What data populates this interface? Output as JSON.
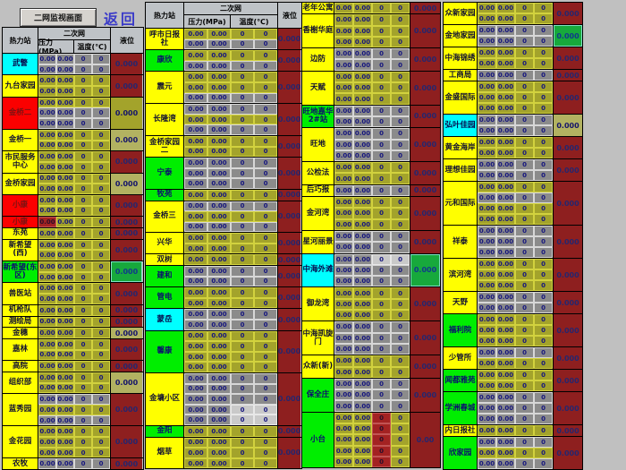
{
  "titlebar": {
    "screen_button_label": "二网监视画面",
    "return_label": "返回"
  },
  "table_headers": {
    "station": "热力站",
    "network": "二次网",
    "pressure": "压力(MPa)",
    "temperature": "温度(℃)",
    "level": "液位"
  },
  "defaults": {
    "pressure_value": "0.00",
    "temperature_value": "0",
    "level_value": "0.000"
  },
  "colors": {
    "background": "#c0c0c0",
    "station_yellow": "#ffff00",
    "station_red": "#fb0000",
    "station_green": "#00ee00",
    "station_cyan": "#00ffff",
    "cell_olive": "#a3a32b",
    "cell_gray": "#8b8b8b",
    "cell_light": "#c9c9c9",
    "cell_alarm_red": "#a32222",
    "level_dark_red": "#8e1f1f",
    "level_olive": "#a3a32b",
    "level_pale": "#b2b261",
    "level_green": "#17a93c",
    "value_text_navy": "#16167e",
    "return_text_blue": "#3a3ac8"
  },
  "groups": [
    {
      "has_header": true,
      "stations": [
        {
          "n": "武警",
          "bg": "cyan",
          "rows": [
            "g",
            "g"
          ],
          "lv": "red"
        },
        {
          "n": "九台家园",
          "bg": "yellow",
          "rows": [
            "o",
            "o"
          ],
          "lv": "red"
        },
        {
          "n": "金桥二",
          "bg": "red",
          "rows": [
            "o",
            "g",
            "g"
          ],
          "lv": "olive"
        },
        {
          "n": "金桥一",
          "bg": "yellow",
          "rows": [
            "o",
            "o"
          ],
          "lv": "pale"
        },
        {
          "n": "市民服务中心",
          "bg": "yellow",
          "rows": [
            "o",
            "o"
          ],
          "lv": "red"
        },
        {
          "n": "金桥家园",
          "bg": "yellow",
          "rows": [
            "o",
            "o"
          ],
          "lv": "pale"
        },
        {
          "n": "小康",
          "bg": "red",
          "rows": [
            "o",
            "o"
          ],
          "lv": "red"
        },
        {
          "n": "小康",
          "bg": "red",
          "rows": [
            "rf"
          ],
          "lv": "red"
        },
        {
          "n": "东苑",
          "bg": "yellow",
          "rows": [
            "o"
          ],
          "lv": "red"
        },
        {
          "n": "新希望(西)",
          "bg": "yellow",
          "rows": [
            "o",
            "o"
          ],
          "lv": "red"
        },
        {
          "n": "新希望(东区)",
          "bg": "green",
          "rows": [
            "o",
            "o"
          ],
          "lv": "green"
        },
        {
          "n": "兽医站",
          "bg": "yellow",
          "rows": [
            "o",
            "o"
          ],
          "lv": "red"
        },
        {
          "n": "机枪队",
          "bg": "yellow",
          "rows": [
            "o"
          ],
          "lv": "red"
        },
        {
          "n": "测绘局",
          "bg": "yellow",
          "rows": [
            "o"
          ],
          "lv": "red"
        },
        {
          "n": "金穗",
          "bg": "yellow",
          "rows": [
            "o"
          ],
          "lv": "pale"
        },
        {
          "n": "嘉林",
          "bg": "yellow",
          "rows": [
            "o",
            "o"
          ],
          "lv": "red"
        },
        {
          "n": "高院",
          "bg": "yellow",
          "rows": [
            "o"
          ],
          "lv": "red"
        },
        {
          "n": "组织部",
          "bg": "yellow",
          "rows": [
            "o",
            "o"
          ],
          "lv": "pale"
        },
        {
          "n": "蓝秀园",
          "bg": "yellow",
          "rows": [
            "g",
            "o",
            "g"
          ],
          "lv": "red"
        },
        {
          "n": "金花园",
          "bg": "yellow",
          "rows": [
            "o",
            "o",
            "o"
          ],
          "lv": "red"
        },
        {
          "n": "农牧",
          "bg": "yellow",
          "rows": [
            "g"
          ],
          "lv": "red"
        }
      ]
    },
    {
      "has_header": true,
      "stations": [
        {
          "n": "呼市日报社",
          "bg": "yellow",
          "rows": [
            "o",
            "g"
          ],
          "lv": "red"
        },
        {
          "n": "康欣",
          "bg": "green",
          "rows": [
            "o",
            "g"
          ],
          "lv": "red"
        },
        {
          "n": "震元",
          "bg": "yellow",
          "rows": [
            "o",
            "o",
            "g"
          ],
          "lv": "red"
        },
        {
          "n": "长隆湾",
          "bg": "yellow",
          "rows": [
            "g",
            "o",
            "g"
          ],
          "lv": "red"
        },
        {
          "n": "金桥家园二",
          "bg": "yellow",
          "rows": [
            "o",
            "o"
          ],
          "lv": "red"
        },
        {
          "n": "宁泰",
          "bg": "green",
          "rows": [
            "g",
            "g",
            "g"
          ],
          "lv": "red"
        },
        {
          "n": "牧苑",
          "bg": "green",
          "rows": [
            "o"
          ],
          "lv": "red"
        },
        {
          "n": "金桥三",
          "bg": "yellow",
          "rows": [
            "g",
            "o",
            "g"
          ],
          "lv": "red"
        },
        {
          "n": "兴华",
          "bg": "yellow",
          "rows": [
            "o",
            "o"
          ],
          "lv": "red"
        },
        {
          "n": "双树",
          "bg": "yellow",
          "rows": [
            "o"
          ],
          "lv": "red"
        },
        {
          "n": "建和",
          "bg": "green",
          "rows": [
            "g",
            "g"
          ],
          "lv": "red"
        },
        {
          "n": "管电",
          "bg": "green",
          "rows": [
            "o",
            "o"
          ],
          "lv": "red"
        },
        {
          "n": "蒙岳",
          "bg": "cyan",
          "rows": [
            "g",
            "g"
          ],
          "lv": "red"
        },
        {
          "n": "馨康",
          "bg": "green",
          "rows": [
            "o",
            "o",
            "o",
            "o"
          ],
          "lv": "red"
        },
        {
          "n": "金墉小区",
          "bg": "yellow",
          "rows": [
            "g",
            "g",
            "g",
            "l",
            "l"
          ],
          "lv": "red"
        },
        {
          "n": "金阳",
          "bg": "green",
          "rows": [
            "o"
          ],
          "lv": "red"
        },
        {
          "n": "烟草",
          "bg": "yellow",
          "rows": [
            "o",
            "o",
            "o"
          ],
          "lv": "red"
        }
      ]
    },
    {
      "has_header": false,
      "stations": [
        {
          "n": "老年公寓",
          "bg": "yellow",
          "rows": [
            "o"
          ],
          "lv": "red"
        },
        {
          "n": "香榭华庭",
          "bg": "yellow",
          "rows": [
            "o",
            "o",
            "o"
          ],
          "lv": "red"
        },
        {
          "n": "边防",
          "bg": "yellow",
          "rows": [
            "g",
            "g"
          ],
          "lv": "red"
        },
        {
          "n": "天赋",
          "bg": "yellow",
          "rows": [
            "o",
            "o",
            "o"
          ],
          "lv": "red"
        },
        {
          "n": "旺地嘉华2#站",
          "bg": "green",
          "rows": [
            "g",
            "g"
          ],
          "lv": "red"
        },
        {
          "n": "旺地",
          "bg": "yellow",
          "rows": [
            "g",
            "g",
            "g"
          ],
          "lv": "red"
        },
        {
          "n": "公检法",
          "bg": "yellow",
          "rows": [
            "o",
            "o"
          ],
          "lv": "red"
        },
        {
          "n": "后巧报",
          "bg": "yellow",
          "rows": [
            "g"
          ],
          "lv": "red"
        },
        {
          "n": "金河湾",
          "bg": "yellow",
          "rows": [
            "o",
            "o",
            "o"
          ],
          "lv": "red"
        },
        {
          "n": "星河丽景",
          "bg": "yellow",
          "rows": [
            "g",
            "g"
          ],
          "lv": "red"
        },
        {
          "n": "中海外滩",
          "bg": "cyan",
          "rows": [
            "l",
            "g",
            "g"
          ],
          "lv": "green"
        },
        {
          "n": "御龙湾",
          "bg": "yellow",
          "rows": [
            "o",
            "o",
            "o"
          ],
          "lv": "red"
        },
        {
          "n": "中海凯旋门",
          "bg": "yellow",
          "rows": [
            "g",
            "g",
            "g"
          ],
          "lv": "red"
        },
        {
          "n": "众新(新)",
          "bg": "yellow",
          "rows": [
            "o",
            "o"
          ],
          "lv": "red"
        },
        {
          "n": "保全庄",
          "bg": "green",
          "rows": [
            "g",
            "g",
            "g"
          ],
          "lv": "red"
        },
        {
          "n": "小台",
          "bg": "green",
          "rows": [
            "tr",
            "tr",
            "tr",
            "tr",
            "tr"
          ],
          "lv": "red",
          "lval": "0.00"
        }
      ]
    },
    {
      "has_header": false,
      "stations": [
        {
          "n": "众新家园",
          "bg": "yellow",
          "rows": [
            "o",
            "o"
          ],
          "lv": "red"
        },
        {
          "n": "金地家园",
          "bg": "yellow",
          "rows": [
            "g",
            "g"
          ],
          "lv": "green"
        },
        {
          "n": "中海锦绣",
          "bg": "yellow",
          "rows": [
            "o",
            "o"
          ],
          "lv": "red"
        },
        {
          "n": "工商局",
          "bg": "yellow",
          "rows": [
            "g"
          ],
          "lv": "red"
        },
        {
          "n": "金盛国际",
          "bg": "yellow",
          "rows": [
            "o",
            "o",
            "o"
          ],
          "lv": "red"
        },
        {
          "n": "弘叶佳园",
          "bg": "cyan",
          "rows": [
            "g",
            "g"
          ],
          "lv": "pale"
        },
        {
          "n": "黄金海岸",
          "bg": "yellow",
          "rows": [
            "o",
            "o"
          ],
          "lv": "red"
        },
        {
          "n": "理想佳园",
          "bg": "yellow",
          "rows": [
            "g",
            "g"
          ],
          "lv": "red"
        },
        {
          "n": "元和国际",
          "bg": "yellow",
          "rows": [
            "o",
            "g",
            "o",
            "o"
          ],
          "lv": "red"
        },
        {
          "n": "祥泰",
          "bg": "yellow",
          "rows": [
            "g",
            "g",
            "g"
          ],
          "lv": "red"
        },
        {
          "n": "滨河湾",
          "bg": "yellow",
          "rows": [
            "o",
            "o",
            "o"
          ],
          "lv": "red"
        },
        {
          "n": "天野",
          "bg": "yellow",
          "rows": [
            "g",
            "g"
          ],
          "lv": "red"
        },
        {
          "n": "福利院",
          "bg": "green",
          "rows": [
            "o",
            "o",
            "o"
          ],
          "lv": "red"
        },
        {
          "n": "少管所",
          "bg": "yellow",
          "rows": [
            "g",
            "o"
          ],
          "lv": "red"
        },
        {
          "n": "闻都雅苑",
          "bg": "green",
          "rows": [
            "o",
            "o"
          ],
          "lv": "red"
        },
        {
          "n": "学洲春城",
          "bg": "green",
          "rows": [
            "g",
            "g",
            "g"
          ],
          "lv": "red"
        },
        {
          "n": "内日报社",
          "bg": "yellow",
          "rows": [
            "o"
          ],
          "lv": "red"
        },
        {
          "n": "欣家园",
          "bg": "green",
          "rows": [
            "g",
            "o",
            "g"
          ],
          "lv": "red"
        }
      ]
    }
  ]
}
